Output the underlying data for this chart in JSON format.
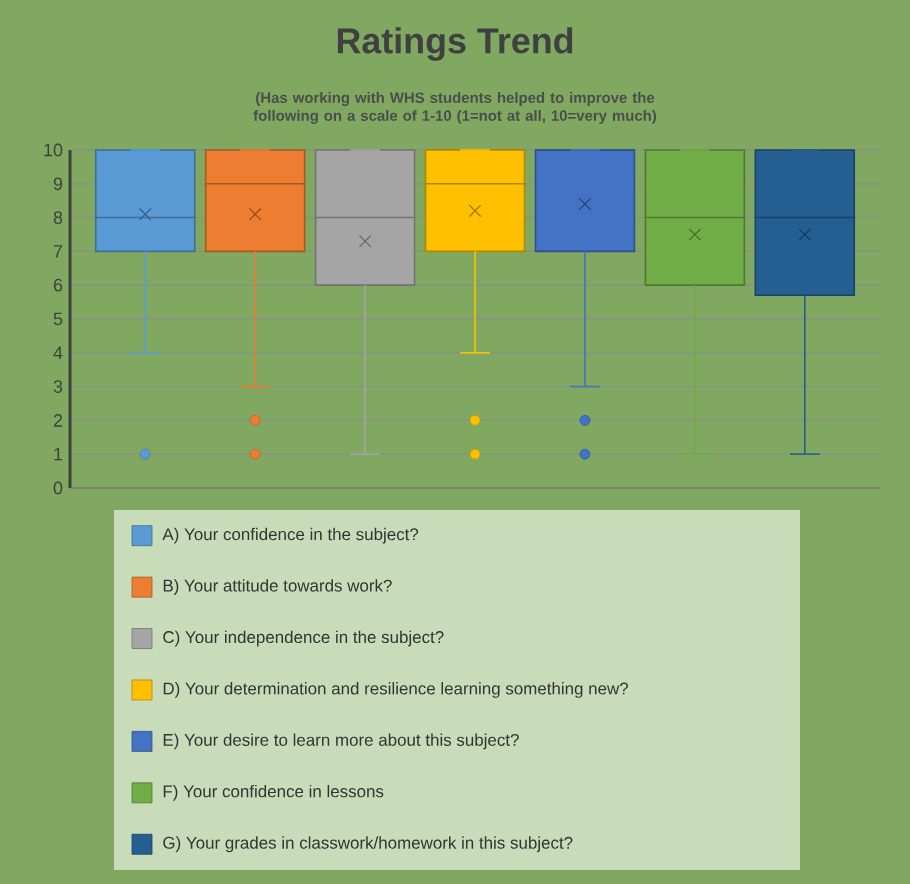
{
  "chart_data": {
    "type": "box",
    "title": "Ratings Trend",
    "subtitle": "(Has working with WHS students helped to improve the following on a scale of 1-10 (1=not at all, 10=very much)",
    "categories": [
      null
    ],
    "ylim": [
      0,
      10
    ],
    "yticks": [
      0,
      1,
      2,
      3,
      4,
      5,
      6,
      7,
      8,
      9,
      10
    ],
    "grid": "y",
    "legend": "bottom",
    "series": [
      {
        "name": "A) Your confidence in the subject?",
        "color": "#5b9bd5",
        "boxes": [
          {
            "low": 4,
            "q1": 7,
            "median": 8,
            "q3": 10,
            "high": 10,
            "mean": 8.1,
            "outliers": [
              1
            ]
          }
        ]
      },
      {
        "name": "B) Your attitude towards work?",
        "color": "#ed7d31",
        "boxes": [
          {
            "low": 3,
            "q1": 7,
            "median": 9,
            "q3": 10,
            "high": 10,
            "mean": 8.1,
            "outliers": [
              2,
              1
            ]
          }
        ]
      },
      {
        "name": "C) Your independence in the subject?",
        "color": "#a5a5a5",
        "boxes": [
          {
            "low": 1,
            "q1": 6,
            "median": 8,
            "q3": 10,
            "high": 10,
            "mean": 7.3
          }
        ]
      },
      {
        "name": "D) Your determination and resilience learning something new?",
        "color": "#ffc000",
        "boxes": [
          {
            "low": 4,
            "q1": 7,
            "median": 9,
            "q3": 10,
            "high": 10,
            "mean": 8.2,
            "outliers": [
              2,
              1
            ]
          }
        ]
      },
      {
        "name": "E) Your desire to learn more about this subject?",
        "color": "#4472c4",
        "boxes": [
          {
            "low": 3,
            "q1": 7,
            "median": 10,
            "q3": 10,
            "high": 10,
            "mean": 8.4,
            "outliers": [
              2,
              1
            ]
          }
        ]
      },
      {
        "name": "F) Your confidence in lessons",
        "color": "#70ad47",
        "boxes": [
          {
            "low": 1,
            "q1": 6,
            "median": 8,
            "q3": 10,
            "high": 10,
            "mean": 7.5
          }
        ]
      },
      {
        "name": "G) Your grades in classwork/homework in this subject?",
        "color": "#255e91",
        "boxes": [
          {
            "low": 1,
            "q1": 5.7,
            "median": 8,
            "q3": 10,
            "high": 10,
            "mean": 7.5
          }
        ]
      }
    ]
  }
}
